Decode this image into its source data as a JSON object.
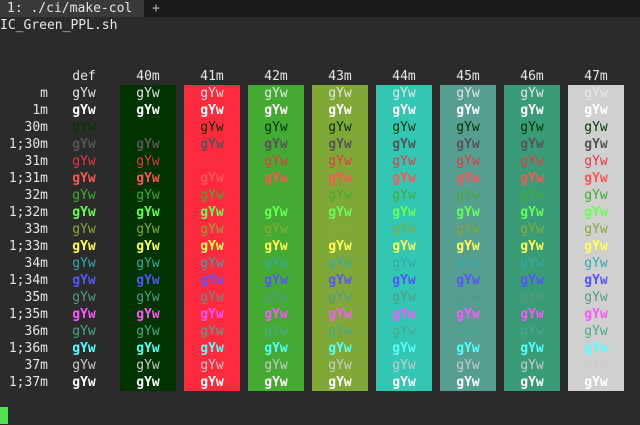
{
  "tabbar": {
    "active_tab_label": "1: ./ci/make-col",
    "new_tab_symbol": "+"
  },
  "terminal": {
    "top_line": "IC_Green_PPL.sh",
    "sample_text": "gYw",
    "column_headers": [
      "def",
      "40m",
      "41m",
      "42m",
      "43m",
      "44m",
      "45m",
      "46m",
      "47m"
    ],
    "row_labels": [
      "m",
      "1m",
      "30m",
      "1;30m",
      "31m",
      "1;31m",
      "32m",
      "1;32m",
      "33m",
      "1;33m",
      "34m",
      "1;34m",
      "35m",
      "1;35m",
      "36m",
      "1;36m",
      "37m",
      "1;37m"
    ],
    "background_colors": {
      "def": "#2b2b2b",
      "40m": "#003300",
      "41m": "#ff2a3d",
      "42m": "#44aa33",
      "43m": "#7fa838",
      "44m": "#33c6b3",
      "45m": "#559e90",
      "46m": "#3a9c76",
      "47m": "#d0d0d0"
    },
    "foreground_colors": {
      "m": "#e6e6e6",
      "1m": "#ffffff",
      "30m": "#003300",
      "1;30m": "#555555",
      "31m": "#ee3344",
      "1;31m": "#ff5555",
      "32m": "#44aa33",
      "1;32m": "#66ff55",
      "33m": "#88aa33",
      "1;33m": "#ffff55",
      "34m": "#33aaaa",
      "1;34m": "#5555ff",
      "35m": "#559988",
      "1;35m": "#ff55ff",
      "36m": "#44aa88",
      "1;36m": "#55ffff",
      "37m": "#cccccc",
      "1;37m": "#ffffff"
    },
    "cursor_color": "#4ee24e"
  }
}
